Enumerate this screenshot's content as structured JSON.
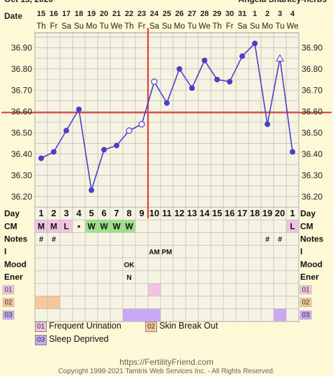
{
  "header": {
    "date_title": "Oct 15, 2020",
    "owner": "Angela Sharkey-herbs",
    "date_label": "Date"
  },
  "chart_data": {
    "type": "line",
    "dates": [
      "15",
      "16",
      "17",
      "18",
      "19",
      "20",
      "21",
      "22",
      "23",
      "24",
      "25",
      "26",
      "27",
      "28",
      "29",
      "30",
      "31",
      "1",
      "2",
      "3",
      "4"
    ],
    "weekdays": [
      "Th",
      "Fr",
      "Sa",
      "Su",
      "Mo",
      "Tu",
      "We",
      "Th",
      "Fr",
      "Sa",
      "Su",
      "Mo",
      "Tu",
      "We",
      "Th",
      "Fr",
      "Sa",
      "Su",
      "Mo",
      "Tu",
      "We"
    ],
    "temps": [
      36.38,
      36.41,
      36.51,
      36.61,
      36.23,
      36.42,
      36.44,
      36.51,
      36.54,
      36.74,
      36.64,
      36.8,
      36.71,
      36.84,
      36.75,
      36.74,
      36.86,
      36.92,
      36.54,
      36.85,
      36.41
    ],
    "open_markers": [
      7,
      8,
      9,
      19
    ],
    "triangle_markers": [
      19
    ],
    "ylim": [
      36.15,
      36.97
    ],
    "y_ticks": [
      "36.90",
      "36.80",
      "36.70",
      "36.60",
      "36.50",
      "36.40",
      "36.30",
      "36.20"
    ],
    "coverline": 36.595,
    "ovulation_index": 8,
    "colors": {
      "line": "#4a3fc8",
      "coverline": "#d94040",
      "grid": "#b8b8b8",
      "plot_bg": "#f6f3e2"
    }
  },
  "table": {
    "row_labels": [
      "Day",
      "CM",
      "Notes",
      "I",
      "Mood",
      "Ener",
      "01",
      "02",
      "03"
    ],
    "days": [
      "1",
      "2",
      "3",
      "4",
      "5",
      "6",
      "7",
      "8",
      "9",
      "10",
      "11",
      "12",
      "13",
      "14",
      "15",
      "16",
      "17",
      "18",
      "19",
      "20",
      "1"
    ],
    "cm": [
      "M",
      "M",
      "L",
      "•",
      "W",
      "W",
      "W",
      "W",
      "",
      "",
      "",
      "",
      "",
      "",
      "",
      "",
      "",
      "",
      "",
      "",
      "L"
    ],
    "notes": [
      "#",
      "#",
      "",
      "",
      "",
      "",
      "",
      "",
      "",
      "",
      "",
      "",
      "",
      "",
      "",
      "",
      "",
      "",
      "#",
      "#",
      ""
    ],
    "intercourse": [
      "",
      "",
      "",
      "",
      "",
      "",
      "",
      "",
      "",
      "AM",
      "PM",
      "",
      "",
      "",
      "",
      "",
      "",
      "",
      "",
      "",
      ""
    ],
    "mood": [
      "",
      "",
      "",
      "",
      "",
      "",
      "",
      "OK",
      "",
      "",
      "",
      "",
      "",
      "",
      "",
      "",
      "",
      "",
      "",
      "",
      ""
    ],
    "energy": [
      "",
      "",
      "",
      "",
      "",
      "",
      "",
      "N",
      "",
      "",
      "",
      "",
      "",
      "",
      "",
      "",
      "",
      "",
      "",
      "",
      ""
    ],
    "symptom_01": [
      9
    ],
    "symptom_02": [
      0,
      1
    ],
    "symptom_03": [
      7,
      8,
      9,
      19
    ]
  },
  "legend": [
    {
      "code": "01",
      "label": "Frequent Urination",
      "color": "#f1c4e2"
    },
    {
      "code": "02",
      "label": "Skin Break Out",
      "color": "#f7c79a"
    },
    {
      "code": "03",
      "label": "Sleep Deprived",
      "color": "#c9a8f4"
    }
  ],
  "footer": {
    "url": "https://FertilityFriend.com",
    "copyright": "Copyright 1998-2021 Tamtris Web Services Inc. - All Rights Reserved."
  }
}
